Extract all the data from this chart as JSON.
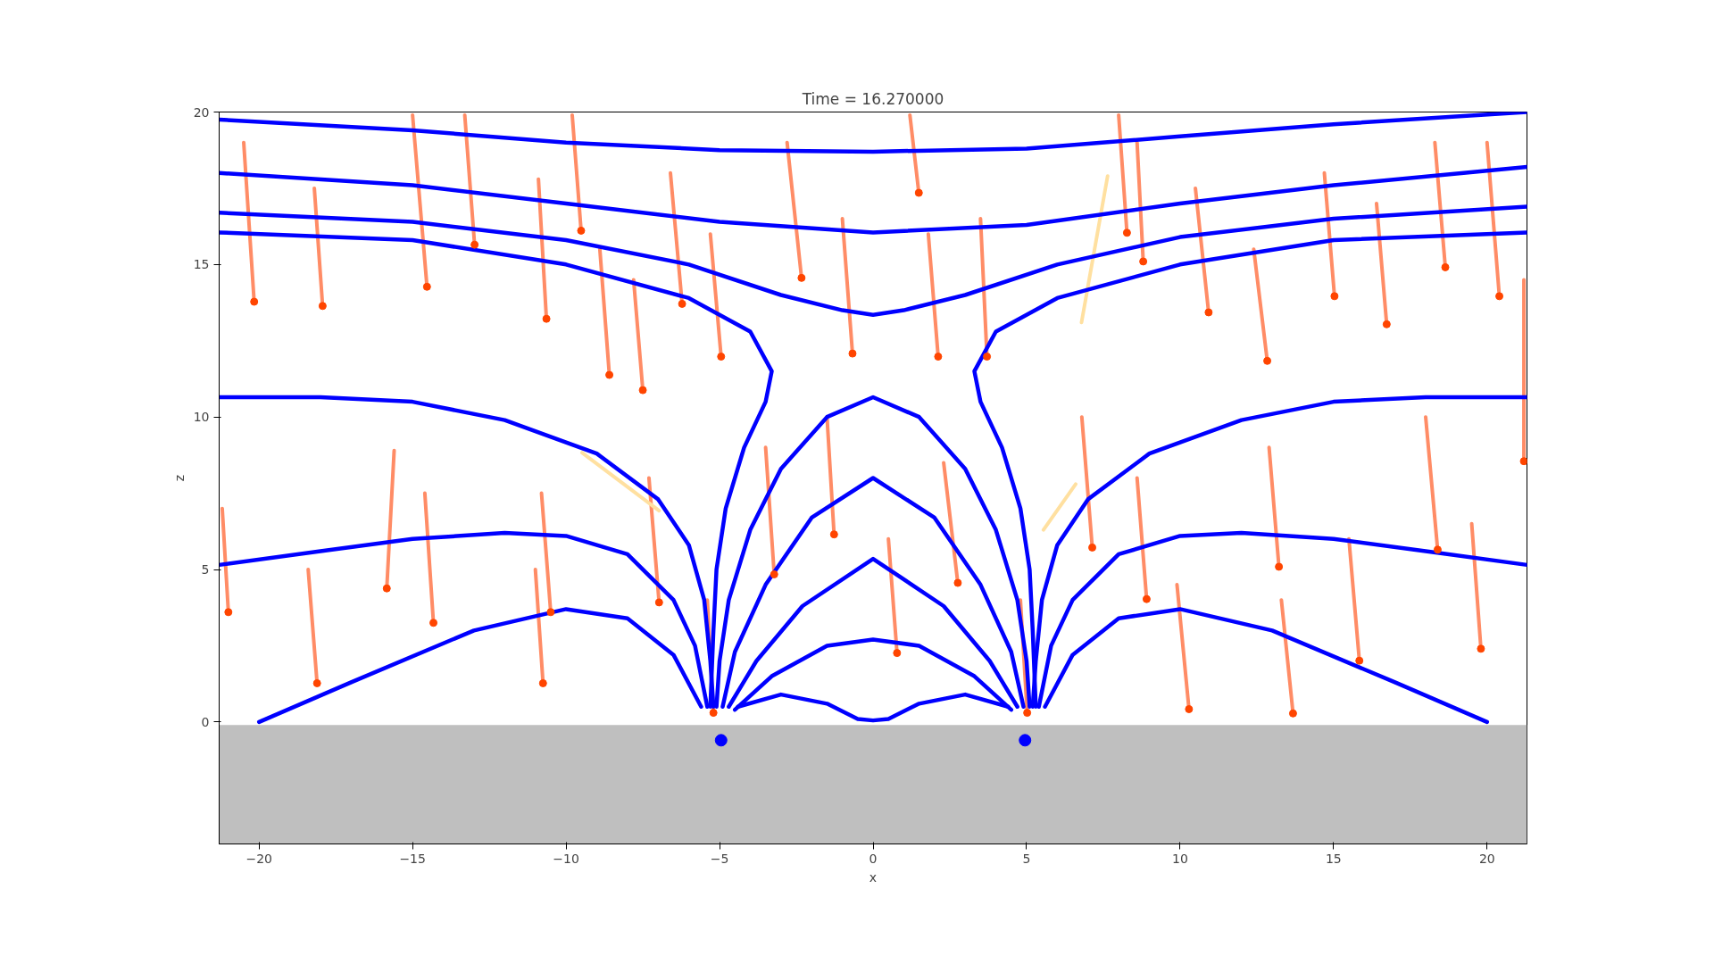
{
  "chart_data": {
    "type": "line",
    "title": "Time = 16.270000",
    "xlabel": "x",
    "ylabel": "z",
    "xlim": [
      -21.3,
      21.3
    ],
    "ylim": [
      -4,
      20
    ],
    "xticks": [
      -20,
      -15,
      -10,
      -5,
      0,
      5,
      10,
      15,
      20
    ],
    "yticks": [
      0,
      5,
      10,
      15,
      20
    ],
    "grid": false,
    "line_style": "solid",
    "bands": [
      {
        "axis": "y",
        "from": -4,
        "to": -0.1,
        "color": "#bfbfbf"
      }
    ],
    "series": [
      {
        "color": "#ff8c66",
        "x": [
          -20.16,
          -20.5,
          null,
          -17.93,
          -18.2,
          null,
          -15.84,
          -15.6,
          null,
          -14.53,
          -15.0,
          null,
          -12.98,
          -13.3,
          null,
          -10.64,
          -10.9,
          null,
          -9.51,
          -9.8,
          null,
          -8.59,
          -8.9,
          null,
          -7.5,
          -7.8,
          null,
          -6.22,
          -6.6,
          null,
          -4.95,
          -5.3,
          null,
          -2.33,
          -2.8,
          null,
          -0.67,
          -1.0,
          null,
          1.49,
          1.2,
          null,
          2.12,
          1.8,
          null,
          3.71,
          3.5,
          null,
          8.27,
          8.0,
          null,
          8.8,
          8.6,
          null,
          10.93,
          10.5,
          null,
          12.84,
          12.4,
          null,
          15.03,
          14.7,
          null,
          16.73,
          16.4,
          null,
          18.64,
          18.3,
          null,
          20.4,
          20.0,
          null,
          21.2,
          21.2,
          null,
          18.39,
          18.0,
          null,
          15.84,
          15.5,
          null,
          13.22,
          12.9,
          null,
          10.29,
          9.9,
          null,
          8.91,
          8.6,
          null,
          7.14,
          6.8,
          null,
          13.68,
          13.3,
          null,
          19.8,
          19.5,
          null,
          2.76,
          2.3,
          null,
          -1.27,
          -1.5,
          null,
          -3.22,
          -3.5,
          null,
          -6.97,
          -7.3,
          null,
          -10.5,
          -10.8,
          null,
          -14.32,
          -14.6,
          null,
          -18.11,
          -18.4,
          null,
          -21.0,
          -21.2,
          null,
          -10.75,
          -11.0,
          null,
          -5.2,
          -5.4,
          null,
          0.78,
          0.5,
          null,
          5.02,
          4.8
        ],
        "values": [
          13.78,
          19.0,
          null,
          13.64,
          17.5,
          null,
          4.38,
          8.9,
          null,
          14.27,
          19.9,
          null,
          15.65,
          19.9,
          null,
          13.22,
          17.8,
          null,
          16.11,
          19.9,
          null,
          11.38,
          15.5,
          null,
          10.88,
          14.5,
          null,
          13.71,
          18.0,
          null,
          11.98,
          16.0,
          null,
          14.56,
          19.0,
          null,
          12.08,
          16.5,
          null,
          17.35,
          19.9,
          null,
          11.98,
          16.0,
          null,
          11.98,
          16.5,
          null,
          16.04,
          19.9,
          null,
          15.1,
          19.0,
          null,
          13.43,
          17.5,
          null,
          11.84,
          15.5,
          null,
          13.96,
          18.0,
          null,
          13.04,
          17.0,
          null,
          14.91,
          19.0,
          null,
          13.96,
          19.0,
          null,
          8.55,
          14.5,
          null,
          5.65,
          10.0,
          null,
          2.01,
          6.0,
          null,
          5.09,
          9.0,
          null,
          0.42,
          4.5,
          null,
          4.03,
          8.0,
          null,
          5.72,
          10.0,
          null,
          0.28,
          4.0,
          null,
          2.4,
          6.5,
          null,
          4.56,
          8.5,
          null,
          6.15,
          10.0,
          null,
          4.84,
          9.0,
          null,
          3.92,
          8.0,
          null,
          3.6,
          7.5,
          null,
          3.25,
          7.5,
          null,
          1.27,
          5.0,
          null,
          3.6,
          7.0,
          null,
          1.27,
          5.0,
          null,
          0.3,
          4.0,
          null,
          2.26,
          6.0,
          null,
          0.3,
          4.0
        ]
      },
      {
        "color": "#ffe0a0",
        "x": [
          -9.48,
          -6.97,
          null,
          7.64,
          6.79,
          null,
          6.6,
          5.55
        ],
        "values": [
          8.83,
          6.93,
          null,
          17.9,
          13.1,
          null,
          7.8,
          6.3
        ]
      },
      {
        "type": "scatter",
        "marker": "circle",
        "color": "#ff4500",
        "x": [
          -20.16,
          -17.93,
          -15.84,
          -14.53,
          -12.98,
          -10.64,
          -9.51,
          -8.59,
          -7.5,
          -6.22,
          -4.95,
          -2.33,
          -0.67,
          1.49,
          2.12,
          3.71,
          8.27,
          8.8,
          10.93,
          12.84,
          15.03,
          16.73,
          18.64,
          20.4,
          21.2,
          18.39,
          15.84,
          13.22,
          10.29,
          8.91,
          7.14,
          13.68,
          19.8,
          2.76,
          -1.27,
          -3.22,
          -6.97,
          -10.5,
          -14.32,
          -18.11,
          -21.0,
          -10.75,
          -5.2,
          0.78,
          5.02
        ],
        "values": [
          13.78,
          13.64,
          4.38,
          14.27,
          15.65,
          13.22,
          16.11,
          11.38,
          10.88,
          13.71,
          11.98,
          14.56,
          12.08,
          17.35,
          11.98,
          11.98,
          16.04,
          15.1,
          13.43,
          11.84,
          13.96,
          13.04,
          14.91,
          13.96,
          8.55,
          5.65,
          2.01,
          5.09,
          0.42,
          4.03,
          5.72,
          0.28,
          2.4,
          4.56,
          6.15,
          4.84,
          3.92,
          3.6,
          3.25,
          1.27,
          3.6,
          1.27,
          0.3,
          2.26,
          0.3
        ]
      },
      {
        "color": "#0000ff",
        "x": [
          -21.3,
          -15,
          -10,
          -5,
          0,
          5,
          10,
          15,
          21.3
        ],
        "values": [
          19.75,
          19.4,
          19.0,
          18.75,
          18.7,
          18.8,
          19.2,
          19.6,
          20.0
        ]
      },
      {
        "color": "#0000ff",
        "x": [
          -21.3,
          -15,
          -10,
          -5,
          0,
          5,
          10,
          15,
          21.3
        ],
        "values": [
          18.0,
          17.6,
          17.0,
          16.4,
          16.05,
          16.3,
          17.0,
          17.6,
          18.2
        ]
      },
      {
        "color": "#0000ff",
        "x": [
          -21.3,
          -15,
          -10,
          -6,
          -3,
          -1,
          0,
          1,
          3,
          6,
          10,
          15,
          21.3
        ],
        "values": [
          16.7,
          16.4,
          15.8,
          15.0,
          14.0,
          13.5,
          13.35,
          13.5,
          14.0,
          15.0,
          15.9,
          16.5,
          16.9
        ]
      },
      {
        "color": "#0000ff",
        "x": [
          -21.3,
          -15,
          -10,
          -6,
          -4,
          -3.3,
          -3.5,
          -4.2,
          -4.8,
          -5.1,
          -5.2,
          -5.3
        ],
        "values": [
          16.05,
          15.8,
          15.0,
          13.9,
          12.8,
          11.5,
          10.5,
          9.0,
          7.0,
          5.0,
          3.0,
          0.5
        ]
      },
      {
        "color": "#0000ff",
        "x": [
          21.3,
          15,
          10,
          6,
          4,
          3.3,
          3.5,
          4.2,
          4.8,
          5.1,
          5.2,
          5.3
        ],
        "values": [
          16.05,
          15.8,
          15.0,
          13.9,
          12.8,
          11.5,
          10.5,
          9.0,
          7.0,
          5.0,
          3.0,
          0.5
        ]
      },
      {
        "color": "#0000ff",
        "x": [
          -21.3,
          -18,
          -15,
          -12,
          -9,
          -7,
          -6,
          -5.5,
          -5.3,
          -5.2
        ],
        "values": [
          10.65,
          10.65,
          10.5,
          9.9,
          8.8,
          7.3,
          5.8,
          4.0,
          2.0,
          0.5
        ]
      },
      {
        "color": "#0000ff",
        "x": [
          21.3,
          18,
          15,
          12,
          9,
          7,
          6,
          5.5,
          5.3,
          5.2
        ],
        "values": [
          10.65,
          10.65,
          10.5,
          9.9,
          8.8,
          7.3,
          5.8,
          4.0,
          2.0,
          0.5
        ]
      },
      {
        "color": "#0000ff",
        "x": [
          -21.3,
          -18,
          -15,
          -12,
          -10,
          -8,
          -6.5,
          -5.8,
          -5.4
        ],
        "values": [
          5.15,
          5.6,
          6.0,
          6.2,
          6.1,
          5.5,
          4.0,
          2.5,
          0.5
        ]
      },
      {
        "color": "#0000ff",
        "x": [
          21.3,
          18,
          15,
          12,
          10,
          8,
          6.5,
          5.8,
          5.4
        ],
        "values": [
          5.15,
          5.6,
          6.0,
          6.2,
          6.1,
          5.5,
          4.0,
          2.5,
          0.5
        ]
      },
      {
        "color": "#0000ff",
        "x": [
          -20,
          -17,
          -13,
          -10,
          -8,
          -6.5,
          -5.6
        ],
        "values": [
          0,
          1.3,
          3.0,
          3.7,
          3.4,
          2.2,
          0.5
        ]
      },
      {
        "color": "#0000ff",
        "x": [
          20,
          17,
          13,
          10,
          8,
          6.5,
          5.6
        ],
        "values": [
          0,
          1.3,
          3.0,
          3.7,
          3.4,
          2.2,
          0.5
        ]
      },
      {
        "color": "#0000ff",
        "x": [
          -5.1,
          -5,
          -4.7,
          -4,
          -3,
          -1.5,
          0,
          1.5,
          3,
          4,
          4.7,
          5,
          5.1
        ],
        "values": [
          0.5,
          2,
          4,
          6.3,
          8.3,
          10,
          10.65,
          10,
          8.3,
          6.3,
          4,
          2,
          0.5
        ]
      },
      {
        "color": "#0000ff",
        "x": [
          -4.9,
          -4.5,
          -3.5,
          -2,
          0,
          2,
          3.5,
          4.5,
          4.9
        ],
        "values": [
          0.5,
          2.3,
          4.5,
          6.7,
          8.0,
          6.7,
          4.5,
          2.3,
          0.5
        ]
      },
      {
        "color": "#0000ff",
        "x": [
          -4.7,
          -3.8,
          -2.3,
          0,
          2.3,
          3.8,
          4.7
        ],
        "values": [
          0.5,
          2.0,
          3.8,
          5.35,
          3.8,
          2.0,
          0.5
        ]
      },
      {
        "color": "#0000ff",
        "x": [
          -4.5,
          -3.3,
          -1.5,
          0,
          1.5,
          3.3,
          4.5
        ],
        "values": [
          0.4,
          1.5,
          2.5,
          2.7,
          2.5,
          1.5,
          0.4
        ]
      },
      {
        "color": "#0000ff",
        "x": [
          -4.4,
          -3,
          -1.5,
          -0.5,
          0,
          0.5,
          1.5,
          3,
          4.4
        ],
        "values": [
          0.5,
          0.9,
          0.6,
          0.1,
          0.05,
          0.1,
          0.6,
          0.9,
          0.5
        ]
      },
      {
        "type": "scatter",
        "marker": "circle",
        "color": "#0000ff",
        "x": [
          -4.95,
          4.95
        ],
        "values": [
          -0.6,
          -0.6
        ]
      }
    ]
  }
}
